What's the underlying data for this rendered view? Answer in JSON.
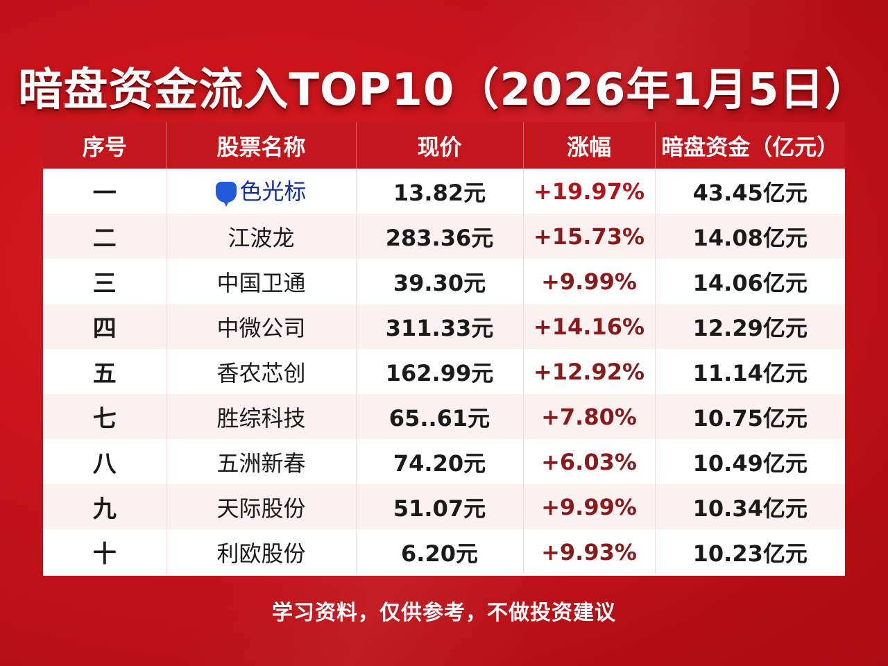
{
  "title": "暗盘资金流入TOP10（2026年1月5日）",
  "headers": [
    "序号",
    "股票名称",
    "现价",
    "涨幅",
    "暗盘资金（亿元）"
  ],
  "rows": [
    {
      "rank": "一",
      "name": "色光标",
      "price": "13.82元",
      "change": "+19.97%",
      "fund": "43.45亿元"
    },
    {
      "rank": "二",
      "name": "江波龙",
      "price": "283.36元",
      "change": "+15.73%",
      "fund": "14.08亿元"
    },
    {
      "rank": "三",
      "name": "中国卫通",
      "price": "39.30元",
      "change": "+9.99%",
      "fund": "14.06亿元"
    },
    {
      "rank": "四",
      "name": "中微公司",
      "price": "311.33元",
      "change": "+14.16%",
      "fund": "12.29亿元"
    },
    {
      "rank": "五",
      "name": "香农芯创",
      "price": "162.99元",
      "change": "+12.92%",
      "fund": "11.14亿元"
    },
    {
      "rank": "七",
      "name": "胜综科技",
      "price": "65..61元",
      "change": "+7.80%",
      "fund": "10.75亿元"
    },
    {
      "rank": "八",
      "name": "五洲新春",
      "price": "74.20元",
      "change": "+6.03%",
      "fund": "10.49亿元"
    },
    {
      "rank": "九",
      "name": "天际股份",
      "price": "51.07元",
      "change": "+9.99%",
      "fund": "10.34亿元"
    },
    {
      "rank": "十",
      "name": "利欧股份",
      "price": "6.20元",
      "change": "+9.93%",
      "fund": "10.23亿元"
    }
  ],
  "footer": "学习资料，仅供参考，不做投资建议",
  "colors": {
    "background": "#c8121a",
    "header": "#c3161d",
    "change_text": "#8a1a1a",
    "marker": "#1e5bd8"
  },
  "icons": {
    "first_row_marker": "location-pin-icon"
  }
}
